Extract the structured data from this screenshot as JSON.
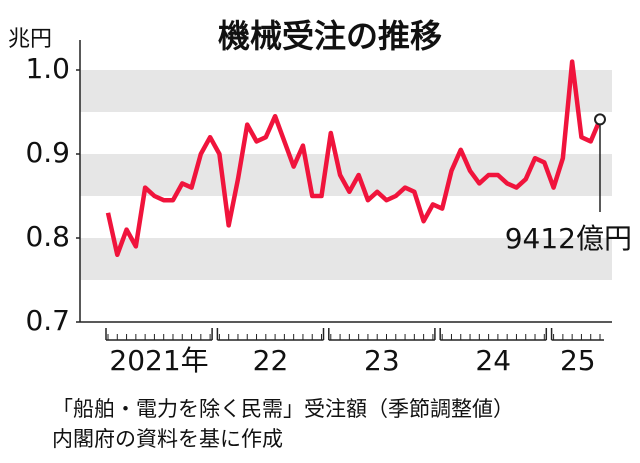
{
  "chart_data": {
    "type": "line",
    "title": "機械受注の推移",
    "y_unit": "兆円",
    "categories": [
      null,
      null,
      null,
      null,
      null,
      null,
      null,
      null,
      null,
      null,
      null,
      null,
      null,
      null,
      null,
      null,
      null,
      null,
      null,
      null,
      null,
      null,
      null,
      null,
      null,
      null,
      null,
      null,
      null,
      null,
      null,
      null,
      null,
      null,
      null,
      null,
      null,
      null,
      null,
      null,
      null,
      null,
      null,
      null,
      null,
      null,
      null,
      null,
      null,
      null,
      null,
      null,
      null,
      null
    ],
    "year_labels": [
      "2021年",
      "22",
      "23",
      "24",
      "25"
    ],
    "series": [
      {
        "name": "船舶・電力を除く民需",
        "color": "#f0143c",
        "values": [
          0.83,
          0.78,
          0.81,
          0.79,
          0.86,
          0.85,
          0.845,
          0.845,
          0.865,
          0.86,
          0.9,
          0.92,
          0.9,
          0.815,
          0.87,
          0.935,
          0.915,
          0.92,
          0.945,
          0.915,
          0.885,
          0.91,
          0.85,
          0.85,
          0.925,
          0.875,
          0.855,
          0.875,
          0.845,
          0.855,
          0.845,
          0.85,
          0.86,
          0.855,
          0.82,
          0.84,
          0.835,
          0.88,
          0.905,
          0.88,
          0.865,
          0.875,
          0.875,
          0.865,
          0.86,
          0.87,
          0.895,
          0.89,
          0.86,
          0.895,
          1.01,
          0.92,
          0.915,
          0.9412
        ]
      }
    ],
    "annotation": "9412億円",
    "ylim": [
      0.7,
      1.0
    ],
    "yticks": [
      0.7,
      0.8,
      0.9,
      {
        "value": 1.0,
        "label": "1.0"
      }
    ],
    "bands": true,
    "footnote": [
      "「船舶・電力を除く民需」受注額（季節調整値）",
      "内閣府の資料を基に作成"
    ]
  }
}
